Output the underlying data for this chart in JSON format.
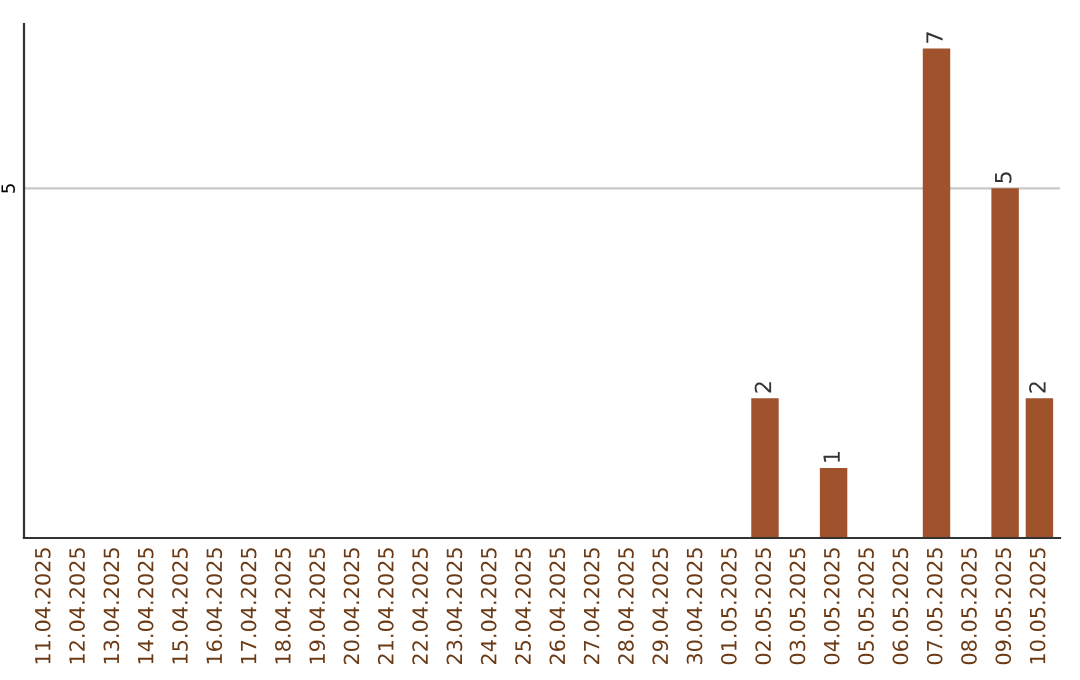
{
  "chart_data": {
    "type": "bar",
    "categories": [
      "11.04.2025",
      "12.04.2025",
      "13.04.2025",
      "14.04.2025",
      "15.04.2025",
      "16.04.2025",
      "17.04.2025",
      "18.04.2025",
      "19.04.2025",
      "20.04.2025",
      "21.04.2025",
      "22.04.2025",
      "23.04.2025",
      "24.04.2025",
      "25.04.2025",
      "26.04.2025",
      "27.04.2025",
      "28.04.2025",
      "29.04.2025",
      "30.04.2025",
      "01.05.2025",
      "02.05.2025",
      "03.05.2025",
      "04.05.2025",
      "05.05.2025",
      "06.05.2025",
      "07.05.2025",
      "08.05.2025",
      "09.05.2025",
      "10.05.2025"
    ],
    "values": [
      null,
      null,
      null,
      null,
      null,
      null,
      null,
      null,
      null,
      null,
      null,
      null,
      null,
      null,
      null,
      null,
      null,
      null,
      null,
      null,
      null,
      2,
      null,
      1,
      null,
      null,
      7,
      null,
      5,
      2
    ],
    "value_labels": [
      null,
      null,
      null,
      null,
      null,
      null,
      null,
      null,
      null,
      null,
      null,
      null,
      null,
      null,
      null,
      null,
      null,
      null,
      null,
      null,
      null,
      "2",
      null,
      "1",
      null,
      null,
      "7",
      null,
      "5",
      "2"
    ],
    "color": "#a0522d",
    "ylim": [
      0,
      7.35
    ],
    "yticks": [
      5
    ],
    "grid": "y"
  }
}
